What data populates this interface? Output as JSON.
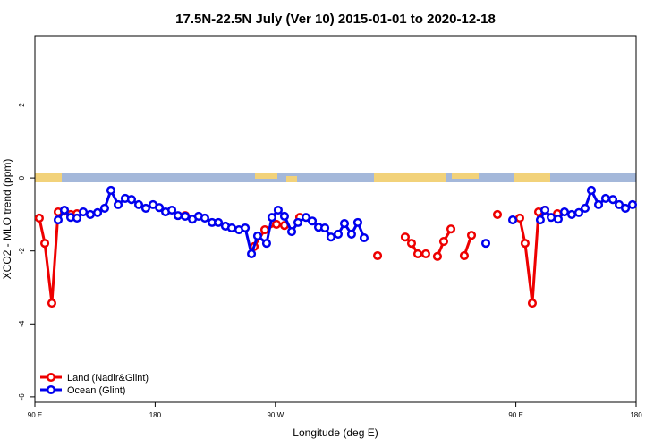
{
  "chart_data": {
    "type": "line",
    "title": "17.5N-22.5N July (Ver 10)   2015-01-01 to 2020-12-18",
    "x_label": "Longitude (deg E)",
    "y_label": "XCO2 - MLO trend (ppm)",
    "xlim": [
      90,
      540
    ],
    "ylim": [
      -6.15,
      3.9
    ],
    "xticks": [
      {
        "value": 90,
        "label": "90 E"
      },
      180,
      {
        "value": 270,
        "label": "90 W"
      },
      {
        "value": 450,
        "label": "90 E"
      },
      {
        "value": 540,
        "label": "180"
      }
    ],
    "yticks": [
      -6,
      -4,
      -2,
      0,
      2
    ],
    "legend": "bottom-left",
    "series": [
      {
        "name": "Land (Nadir&Glint)",
        "color": "#ee0000",
        "x": [
          93.3,
          97.4,
          102.7,
          107.4,
          112.1,
          116.8,
          121.5,
          null,
          202.5,
          null,
          254.1,
          262.1,
          270.8,
          276.8,
          null,
          288.2,
          null,
          346.5,
          null,
          367.2,
          371.9,
          376.6,
          382.6,
          null,
          391.3,
          396.0,
          401.4,
          null,
          411.4,
          416.8,
          null,
          436.2,
          null,
          452.9,
          456.9,
          462.3,
          467.0,
          471.7,
          null,
          481.1
        ],
        "values": [
          -1.1,
          -1.79,
          -3.43,
          -0.93,
          -0.91,
          -1.0,
          -0.98,
          null,
          -1.03,
          null,
          -1.88,
          -1.42,
          -1.27,
          -1.3,
          null,
          -1.08,
          null,
          -2.13,
          null,
          -1.62,
          -1.79,
          -2.08,
          -2.08,
          null,
          -2.15,
          -1.74,
          -1.4,
          null,
          -2.13,
          -1.57,
          null,
          -1.0,
          null,
          -1.1,
          -1.79,
          -3.43,
          -0.93,
          -0.88,
          null,
          -0.98
        ]
      },
      {
        "name": "Ocean (Glint)",
        "color": "#0000ee",
        "x": [
          107.4,
          112.1,
          116.8,
          121.5,
          126.2,
          131.5,
          136.9,
          142.2,
          146.9,
          152.3,
          157.6,
          162.3,
          167.7,
          173.0,
          178.4,
          183.1,
          187.8,
          192.5,
          197.1,
          202.5,
          207.9,
          212.5,
          217.2,
          222.6,
          227.3,
          232.6,
          237.3,
          242.7,
          247.4,
          252.1,
          256.7,
          263.4,
          267.4,
          272.1,
          276.8,
          282.2,
          286.9,
          292.9,
          297.6,
          302.3,
          307.0,
          311.6,
          317.0,
          321.7,
          327.0,
          331.7,
          336.4,
          null,
          427.5,
          null,
          447.6,
          null,
          468.3,
          471.7,
          476.4,
          481.7,
          486.4,
          491.8,
          497.1,
          501.8,
          506.5,
          511.9,
          517.2,
          522.6,
          527.3,
          532.0,
          537.3
        ],
        "values": [
          -1.15,
          -0.88,
          -1.08,
          -1.1,
          -0.93,
          -1.0,
          -0.95,
          -0.83,
          -0.34,
          -0.73,
          -0.56,
          -0.59,
          -0.73,
          -0.83,
          -0.73,
          -0.81,
          -0.93,
          -0.88,
          -1.03,
          -1.05,
          -1.13,
          -1.05,
          -1.1,
          -1.22,
          -1.22,
          -1.32,
          -1.37,
          -1.42,
          -1.37,
          -2.08,
          -1.59,
          -1.79,
          -1.08,
          -0.88,
          -1.05,
          -1.47,
          -1.22,
          -1.08,
          -1.18,
          -1.35,
          -1.37,
          -1.62,
          -1.54,
          -1.25,
          -1.54,
          -1.22,
          -1.64,
          null,
          -1.79,
          null,
          -1.15,
          null,
          -1.15,
          -0.88,
          -1.08,
          -1.13,
          -0.93,
          -1.0,
          -0.95,
          -0.83,
          -0.34,
          -0.73,
          -0.56,
          -0.59,
          -0.73,
          -0.83,
          -0.73
        ]
      }
    ]
  }
}
